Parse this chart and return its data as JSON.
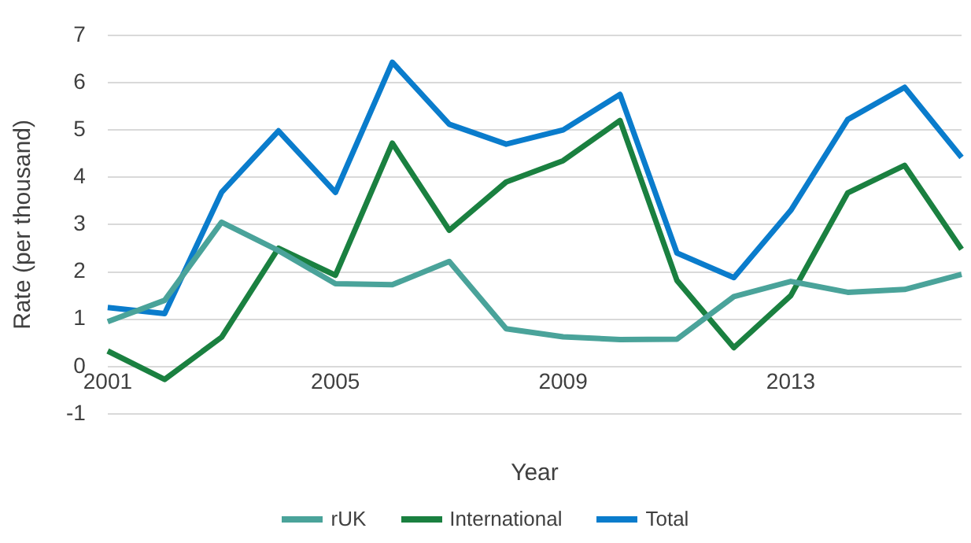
{
  "chart_data": {
    "type": "line",
    "xlabel": "Year",
    "ylabel": "Rate (per thousand)",
    "categories": [
      "2001",
      null,
      null,
      null,
      "2005",
      null,
      null,
      null,
      "2009",
      null,
      null,
      null,
      "2013",
      null,
      null,
      null
    ],
    "series": [
      {
        "name": "rUK",
        "color": "#4aa39a",
        "values": [
          0.95,
          1.4,
          3.05,
          2.45,
          1.75,
          1.73,
          2.22,
          0.8,
          0.63,
          0.57,
          0.58,
          1.48,
          1.8,
          1.57,
          1.63,
          1.95
        ]
      },
      {
        "name": "International",
        "color": "#1a8040",
        "values": [
          0.33,
          -0.27,
          0.62,
          2.5,
          1.93,
          4.72,
          2.88,
          3.9,
          4.35,
          5.2,
          1.82,
          0.4,
          1.5,
          3.67,
          4.25,
          2.48
        ]
      },
      {
        "name": "Total",
        "color": "#0a7ccc",
        "values": [
          1.25,
          1.12,
          3.68,
          4.98,
          3.68,
          6.43,
          5.12,
          4.7,
          5.0,
          5.75,
          2.4,
          1.88,
          3.3,
          5.22,
          5.9,
          4.42
        ]
      }
    ],
    "ylim": [
      -1,
      7
    ],
    "yticks": [
      -1,
      0,
      1,
      2,
      3,
      4,
      5,
      6,
      7
    ],
    "grid": "y",
    "legend": "bottom",
    "marker": "none",
    "line_style": "solid"
  }
}
